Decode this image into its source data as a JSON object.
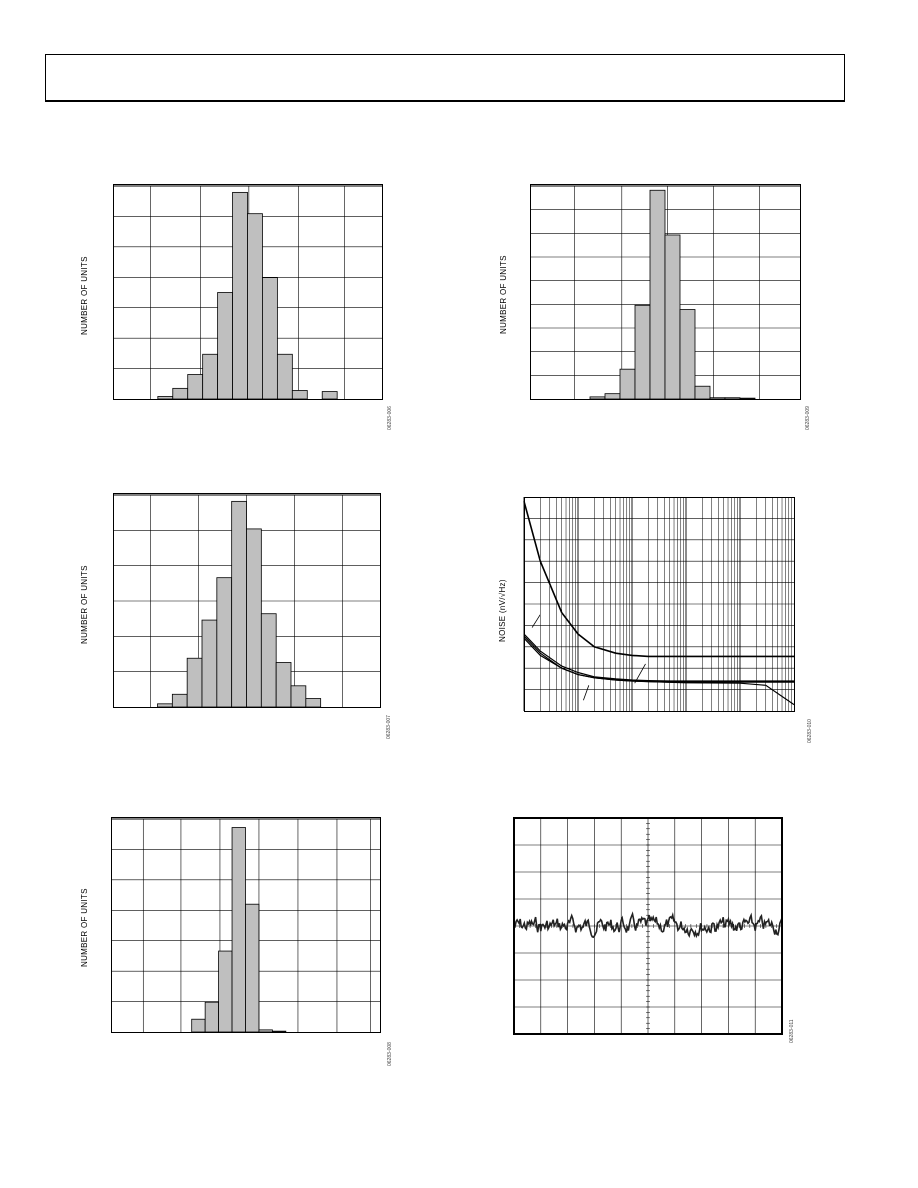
{
  "figure_ids": [
    "06283-006",
    "06283-009",
    "06283-007",
    "06283-010",
    "06283-008",
    "06283-011"
  ],
  "chart_data": [
    {
      "id": "hist-1",
      "type": "bar",
      "xlabel": "",
      "ylabel": "NUMBER OF UNITS",
      "grid": true,
      "vgrid_fracs": [
        0.14,
        0.325,
        0.505,
        0.69,
        0.86
      ],
      "hgrid_count": 7,
      "bins": 18,
      "ylim": [
        0,
        1
      ],
      "values": [
        0,
        0,
        0,
        0.012,
        0.05,
        0.115,
        0.21,
        0.5,
        0.97,
        0.87,
        0.57,
        0.21,
        0.04,
        0,
        0.035,
        0,
        0,
        0
      ],
      "bar_color": "#bfbfbf"
    },
    {
      "id": "hist-2",
      "type": "bar",
      "xlabel": "",
      "ylabel": "NUMBER OF UNITS",
      "grid": true,
      "vgrid_fracs": [
        0.165,
        0.34,
        0.51,
        0.68,
        0.85
      ],
      "hgrid_count": 9,
      "bins": 18,
      "ylim": [
        0,
        1
      ],
      "values": [
        0,
        0,
        0,
        0,
        0.01,
        0.025,
        0.14,
        0.44,
        0.98,
        0.77,
        0.42,
        0.06,
        0.006,
        0.006,
        0.004,
        0,
        0,
        0
      ],
      "bar_color": "#bfbfbf"
    },
    {
      "id": "hist-3",
      "type": "bar",
      "xlabel": "",
      "ylabel": "NUMBER OF UNITS",
      "grid": true,
      "vgrid_fracs": [
        0.14,
        0.32,
        0.5,
        0.68,
        0.86
      ],
      "hgrid_count": 6,
      "bins": 18,
      "ylim": [
        0,
        1
      ],
      "values": [
        0,
        0,
        0,
        0.015,
        0.06,
        0.23,
        0.41,
        0.61,
        0.97,
        0.84,
        0.44,
        0.21,
        0.1,
        0.04,
        0,
        0,
        0,
        0
      ],
      "bar_color": "#bfbfbf"
    },
    {
      "id": "noise-psd",
      "type": "line",
      "xlabel": "",
      "ylabel": "NOISE (nV/√Hz)",
      "xscale": "log",
      "xlim": [
        1,
        100000
      ],
      "grid": true,
      "hgrid_count": 10,
      "series": [
        {
          "x": [
            1,
            2,
            5,
            10,
            20,
            50,
            100,
            200,
            500,
            1000,
            10000,
            100000
          ],
          "values": [
            0.02,
            0.3,
            0.54,
            0.64,
            0.7,
            0.73,
            0.74,
            0.745,
            0.745,
            0.745,
            0.745,
            0.745
          ]
        },
        {
          "x": [
            1,
            2,
            5,
            10,
            20,
            50,
            100,
            200,
            500,
            1000,
            10000,
            100000
          ],
          "values": [
            0.66,
            0.74,
            0.8,
            0.83,
            0.845,
            0.855,
            0.86,
            0.862,
            0.865,
            0.865,
            0.865,
            0.865
          ]
        },
        {
          "x": [
            1,
            2,
            5,
            10,
            20,
            50,
            100,
            200,
            500,
            1000,
            10000,
            100000
          ],
          "values": [
            0.64,
            0.72,
            0.79,
            0.82,
            0.84,
            0.85,
            0.855,
            0.858,
            0.86,
            0.86,
            0.86,
            0.86
          ]
        },
        {
          "x": [
            1,
            2,
            5,
            10,
            20,
            50,
            100,
            200,
            500,
            1000,
            10000,
            30000,
            100000
          ],
          "values": [
            0.65,
            0.73,
            0.8,
            0.83,
            0.845,
            0.855,
            0.86,
            0.863,
            0.866,
            0.868,
            0.87,
            0.88,
            0.97
          ]
        }
      ]
    },
    {
      "id": "hist-4",
      "type": "bar",
      "xlabel": "",
      "ylabel": "NUMBER OF UNITS",
      "grid": true,
      "vgrid_fracs": [
        0.12,
        0.26,
        0.405,
        0.55,
        0.695,
        0.84,
        0.965
      ],
      "hgrid_count": 7,
      "bins": 20,
      "ylim": [
        0,
        1
      ],
      "values": [
        0,
        0,
        0,
        0,
        0,
        0,
        0.06,
        0.14,
        0.38,
        0.96,
        0.6,
        0.01,
        0.004,
        0,
        0,
        0,
        0,
        0,
        0,
        0
      ],
      "bar_color": "#bfbfbf"
    },
    {
      "id": "scope-trace",
      "type": "line",
      "xlabel": "",
      "ylabel": "",
      "grid": true,
      "vdivs": 10,
      "hdivs": 8,
      "noise_level": 0.5,
      "noise_amplitude": 0.03
    }
  ]
}
